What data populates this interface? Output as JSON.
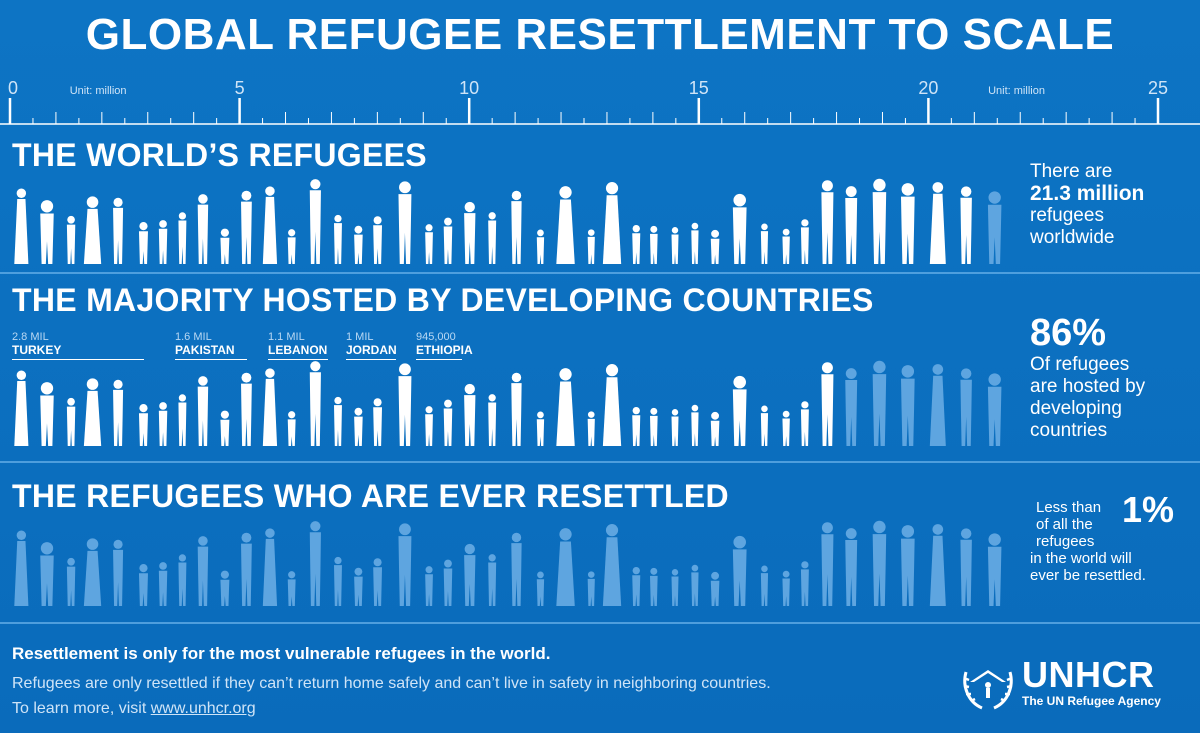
{
  "title": "GLOBAL REFUGEE RESETTLEMENT TO SCALE",
  "colors": {
    "background": "#0a6fbf",
    "figure": "#ffffff",
    "figure_faded": "#5ea5e0",
    "divider": "#5aa7e3"
  },
  "chart_data": {
    "type": "bar",
    "unit_label": "Unit: million",
    "xlim": [
      0,
      25
    ],
    "ticks": [
      "0",
      "5",
      "10",
      "15",
      "20",
      "25"
    ],
    "sections": [
      {
        "heading": "THE WORLD’S REFUGEES",
        "value": 21.3,
        "highlighted": 21.3,
        "side": {
          "pre": "There are",
          "number": "21.3 million",
          "post1": "refugees",
          "post2": "worldwide"
        }
      },
      {
        "heading": "THE MAJORITY HOSTED BY DEVELOPING COUNTRIES",
        "value": 21.3,
        "highlighted": 18.3,
        "side": {
          "number": "86%",
          "l1": "Of refugees",
          "l2": "are hosted by",
          "l3": "developing",
          "l4": "countries"
        },
        "countries": [
          {
            "value": "2.8 MIL",
            "name": "TURKEY",
            "millions": 2.8
          },
          {
            "value": "1.6 MIL",
            "name": "PAKISTAN",
            "millions": 1.6
          },
          {
            "value": "1.1 MIL",
            "name": "LEBANON",
            "millions": 1.1
          },
          {
            "value": "1 MIL",
            "name": "JORDAN",
            "millions": 1.0
          },
          {
            "value": "945,000",
            "name": "ETHIOPIA",
            "millions": 0.945
          }
        ]
      },
      {
        "heading": "THE REFUGEES WHO ARE EVER RESETTLED",
        "value": 21.3,
        "highlighted": 0.2,
        "side": {
          "l1": "Less than",
          "number": "1%",
          "l2": "of all the",
          "l3": "refugees",
          "l4": "in the world will",
          "l5": "ever be resettled."
        }
      }
    ]
  },
  "footer": {
    "line1": "Resettlement is only for the most vulnerable refugees in the world.",
    "line2": "Refugees are only resettled if they can’t return home safely and can’t live in safety in neighboring countries.",
    "line3_pre": "To learn more, visit ",
    "line3_link": "www.unhcr.org"
  },
  "logo": {
    "name": "UNHCR",
    "sub": "The UN Refugee Agency"
  }
}
